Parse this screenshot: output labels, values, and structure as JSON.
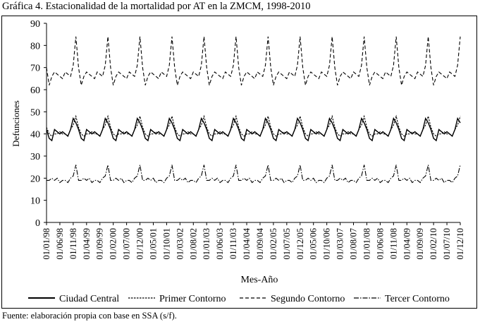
{
  "title": "Gráfica 4. Estacionalidad de la mortalidad por AT en la ZMCM, 1998-2010",
  "source": "Fuente: elaboración propia con base en SSA (s/f).",
  "chart_data": {
    "type": "line",
    "xlabel": "Mes-Año",
    "ylabel": "Defunciones",
    "ylim": [
      0,
      90
    ],
    "yticks": [
      0,
      10,
      20,
      30,
      40,
      50,
      60,
      70,
      80,
      90
    ],
    "grid": false,
    "legend_position": "bottom",
    "x_tick_labels": [
      "01/01/98",
      "01/06/98",
      "01/11/98",
      "01/04/99",
      "01/09/99",
      "01/02/00",
      "01/07/00",
      "01/12/00",
      "01/05/01",
      "01/10/01",
      "01/03/02",
      "01/08/02",
      "01/01/03",
      "01/06/03",
      "01/11/03",
      "01/04/04",
      "01/09/04",
      "01/02/05",
      "01/07/05",
      "01/12/05",
      "01/05/06",
      "01/10/06",
      "01/03/07",
      "01/08/07",
      "01/01/08",
      "01/06/08",
      "01/11/08",
      "01/04/09",
      "01/09/09",
      "01/02/10",
      "01/07/10",
      "01/12/10"
    ],
    "months_per_tick": 5,
    "n_years": 13,
    "series": [
      {
        "name": "Ciudad Central",
        "dash": "solid",
        "monthly_pattern": [
          42,
          38,
          37,
          42,
          41,
          40,
          41,
          40,
          39,
          42,
          47,
          45
        ]
      },
      {
        "name": "Primer Contorno",
        "dash": "dotted",
        "monthly_pattern": [
          43,
          40,
          39,
          40,
          40,
          41,
          40,
          40,
          39,
          42,
          44,
          48
        ]
      },
      {
        "name": "Segundo Contorno",
        "dash": "dashed",
        "monthly_pattern": [
          70,
          62,
          66,
          68,
          67,
          66,
          65,
          68,
          67,
          66,
          71,
          84
        ]
      },
      {
        "name": "Tercer Contorno",
        "dash": "dashdot",
        "monthly_pattern": [
          19,
          19,
          20,
          19,
          20,
          18,
          19,
          19,
          18,
          20,
          21,
          26
        ]
      }
    ]
  }
}
